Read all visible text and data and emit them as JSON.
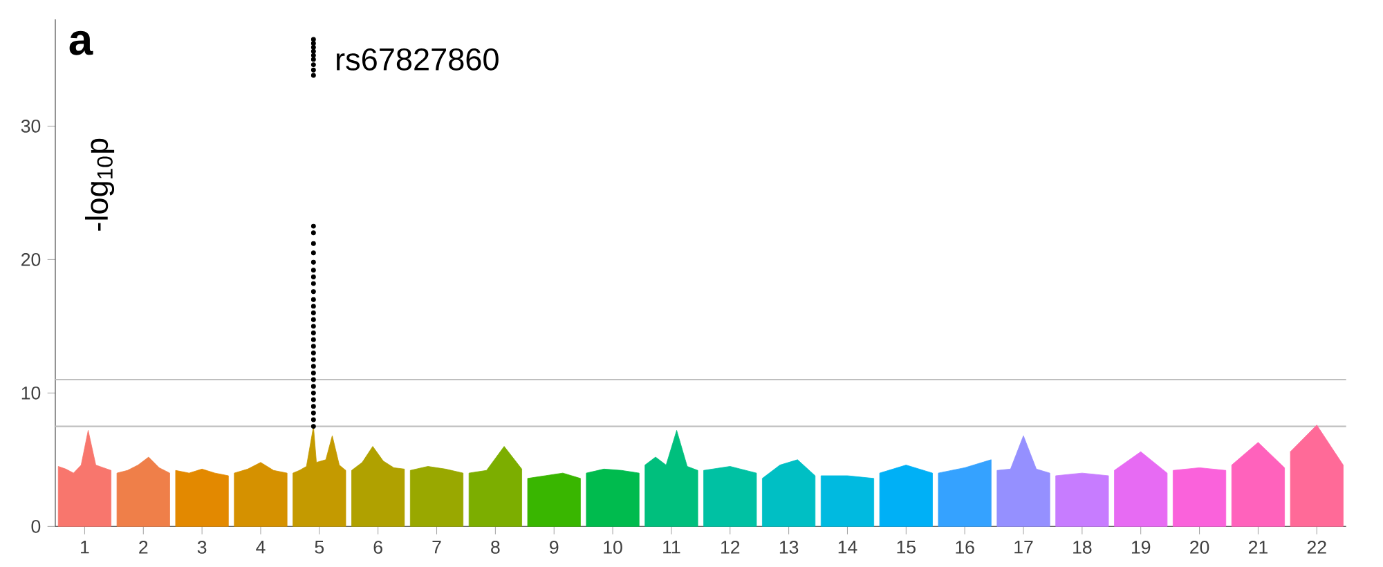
{
  "chart_data": {
    "type": "area",
    "ylabel": "-log$_{10}$p",
    "annotations": [
      "a",
      {
        "text": "rs67827860",
        "x": 4.9,
        "y": 35
      }
    ],
    "xlim": [
      0.5,
      22.5
    ],
    "xticks": [
      1,
      2,
      3,
      4,
      5,
      6,
      7,
      8,
      9,
      10,
      11,
      12,
      13,
      14,
      15,
      16,
      17,
      18,
      19,
      20,
      21,
      22
    ],
    "ylim": [
      0,
      38
    ],
    "yticks": [
      0,
      10,
      20,
      30
    ],
    "ref_lines": [
      {
        "axis": "y",
        "value": 7.5,
        "color": "#bfbfbf"
      },
      {
        "axis": "y",
        "value": 11,
        "color": "#bfbfbf"
      }
    ],
    "series": [
      {
        "color": "#F8766D",
        "x": [
          0.55,
          0.68,
          0.81,
          0.94,
          1.06,
          1.19,
          1.32,
          1.45
        ],
        "values": [
          4.5,
          4.3,
          4.0,
          4.6,
          7.2,
          4.6,
          4.4,
          4.2
        ]
      },
      {
        "color": "#EF7F49",
        "x": [
          1.55,
          1.73,
          1.91,
          2.09,
          2.27,
          2.45
        ],
        "values": [
          4.0,
          4.2,
          4.6,
          5.2,
          4.4,
          4.0
        ]
      },
      {
        "color": "#E38900",
        "x": [
          2.55,
          2.78,
          3,
          3.22,
          3.45
        ],
        "values": [
          4.2,
          4.0,
          4.3,
          4.0,
          3.8
        ]
      },
      {
        "color": "#D59100",
        "x": [
          3.55,
          3.78,
          4,
          4.22,
          4.45
        ],
        "values": [
          4.0,
          4.3,
          4.8,
          4.2,
          4.0
        ]
      },
      {
        "color": "#C49A00",
        "x": [
          4.55,
          4.66,
          4.78,
          4.9,
          4.95,
          5.11,
          5.22,
          5.34,
          5.45
        ],
        "values": [
          4.0,
          4.2,
          4.5,
          7.5,
          4.8,
          5.0,
          6.8,
          4.6,
          4.2
        ]
      },
      {
        "color": "#B0A100",
        "x": [
          5.55,
          5.73,
          5.91,
          6.09,
          6.27,
          6.45
        ],
        "values": [
          4.2,
          4.8,
          6.0,
          4.9,
          4.4,
          4.3
        ]
      },
      {
        "color": "#99A800",
        "x": [
          6.55,
          6.85,
          7.15,
          7.45
        ],
        "values": [
          4.2,
          4.5,
          4.3,
          4.0
        ]
      },
      {
        "color": "#7CAE00",
        "x": [
          7.55,
          7.85,
          8.15,
          8.45
        ],
        "values": [
          4.0,
          4.2,
          6.0,
          4.3
        ]
      },
      {
        "color": "#39B600",
        "x": [
          8.55,
          8.85,
          9.15,
          9.45
        ],
        "values": [
          3.6,
          3.8,
          4.0,
          3.6
        ]
      },
      {
        "color": "#00BB4E",
        "x": [
          9.55,
          9.85,
          10.15,
          10.45
        ],
        "values": [
          4.0,
          4.3,
          4.2,
          4.0
        ]
      },
      {
        "color": "#00BF7D",
        "x": [
          10.55,
          10.73,
          10.91,
          11.09,
          11.27,
          11.45
        ],
        "values": [
          4.6,
          5.2,
          4.6,
          7.2,
          4.5,
          4.2
        ]
      },
      {
        "color": "#00C1A3",
        "x": [
          11.55,
          12,
          12.45
        ],
        "values": [
          4.2,
          4.5,
          4.0
        ]
      },
      {
        "color": "#00BFC4",
        "x": [
          12.55,
          12.85,
          13.15,
          13.45
        ],
        "values": [
          3.6,
          4.6,
          5.0,
          3.8
        ]
      },
      {
        "color": "#00BAE0",
        "x": [
          13.55,
          14,
          14.45
        ],
        "values": [
          3.8,
          3.8,
          3.6
        ]
      },
      {
        "color": "#00B0F6",
        "x": [
          14.55,
          15,
          15.45
        ],
        "values": [
          4.0,
          4.6,
          4.0
        ]
      },
      {
        "color": "#35A2FF",
        "x": [
          15.55,
          16,
          16.45
        ],
        "values": [
          4.0,
          4.4,
          5.0
        ]
      },
      {
        "color": "#9590FF",
        "x": [
          16.55,
          16.78,
          17,
          17.22,
          17.45
        ],
        "values": [
          4.2,
          4.3,
          6.8,
          4.3,
          4.0
        ]
      },
      {
        "color": "#C77CFF",
        "x": [
          17.55,
          18,
          18.45
        ],
        "values": [
          3.8,
          4.0,
          3.8
        ]
      },
      {
        "color": "#E76BF3",
        "x": [
          18.55,
          19,
          19.45
        ],
        "values": [
          4.2,
          5.6,
          4.0
        ]
      },
      {
        "color": "#FA62DB",
        "x": [
          19.55,
          20,
          20.45
        ],
        "values": [
          4.2,
          4.4,
          4.2
        ]
      },
      {
        "color": "#FF62BC",
        "x": [
          20.55,
          21,
          21.45
        ],
        "values": [
          4.6,
          6.3,
          4.4
        ]
      },
      {
        "color": "#FF6A98",
        "x": [
          21.55,
          22,
          22.45
        ],
        "values": [
          5.6,
          7.6,
          4.6
        ]
      },
      {
        "type": "scatter",
        "color": "#000000",
        "marker": "circle",
        "x": [
          4.9,
          4.9,
          4.9,
          4.9,
          4.9,
          4.9,
          4.9,
          4.9,
          4.9,
          4.9,
          4.9,
          4.9,
          4.9,
          4.9,
          4.9,
          4.9,
          4.9,
          4.9,
          4.9,
          4.9,
          4.9,
          4.9,
          4.9,
          4.9,
          4.9,
          4.9,
          4.9,
          4.9,
          4.9,
          4.9,
          4.9,
          4.9,
          4.9,
          4.9,
          4.9,
          4.9,
          4.9,
          4.9
        ],
        "values": [
          36.5,
          36.2,
          35.9,
          35.6,
          35.3,
          35,
          34.6,
          34.2,
          33.8,
          22.5,
          22,
          21.2,
          20.5,
          19.8,
          19.2,
          18.7,
          18.2,
          17.6,
          17,
          16.5,
          16,
          15.5,
          15,
          14.5,
          14,
          13.5,
          13,
          12.5,
          12,
          11.5,
          11,
          10.5,
          10,
          9.5,
          9,
          8.5,
          8,
          7.5
        ]
      }
    ]
  }
}
